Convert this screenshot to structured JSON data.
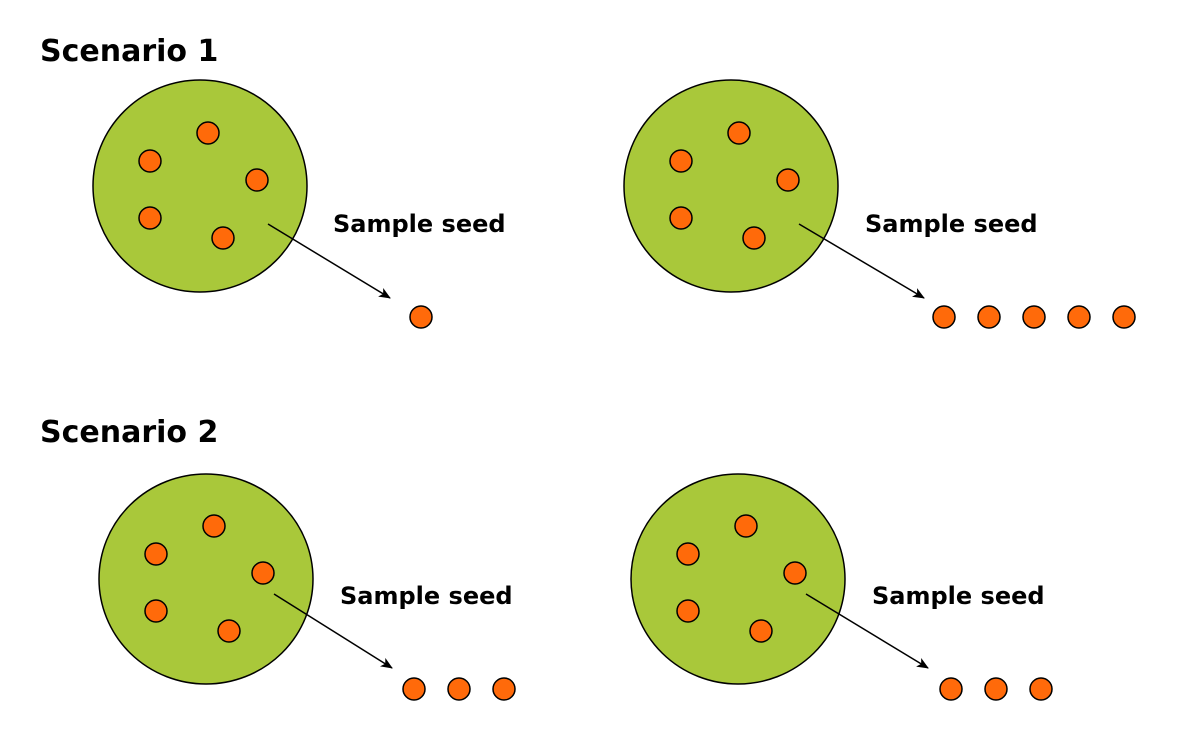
{
  "scenarios": [
    {
      "title": "Scenario 1",
      "panels": [
        {
          "label": "Sample seed",
          "seeds_in_pool": 5,
          "seeds_sampled": 1
        },
        {
          "label": "Sample seed",
          "seeds_in_pool": 5,
          "seeds_sampled": 5
        }
      ]
    },
    {
      "title": "Scenario 2",
      "panels": [
        {
          "label": "Sample seed",
          "seeds_in_pool": 5,
          "seeds_sampled": 3
        },
        {
          "label": "Sample seed",
          "seeds_in_pool": 5,
          "seeds_sampled": 3
        }
      ]
    }
  ],
  "colors": {
    "pool_fill": "#a9c83a",
    "seed_fill": "#ff6a0a",
    "outline": "#000000",
    "background": "#ffffff"
  }
}
